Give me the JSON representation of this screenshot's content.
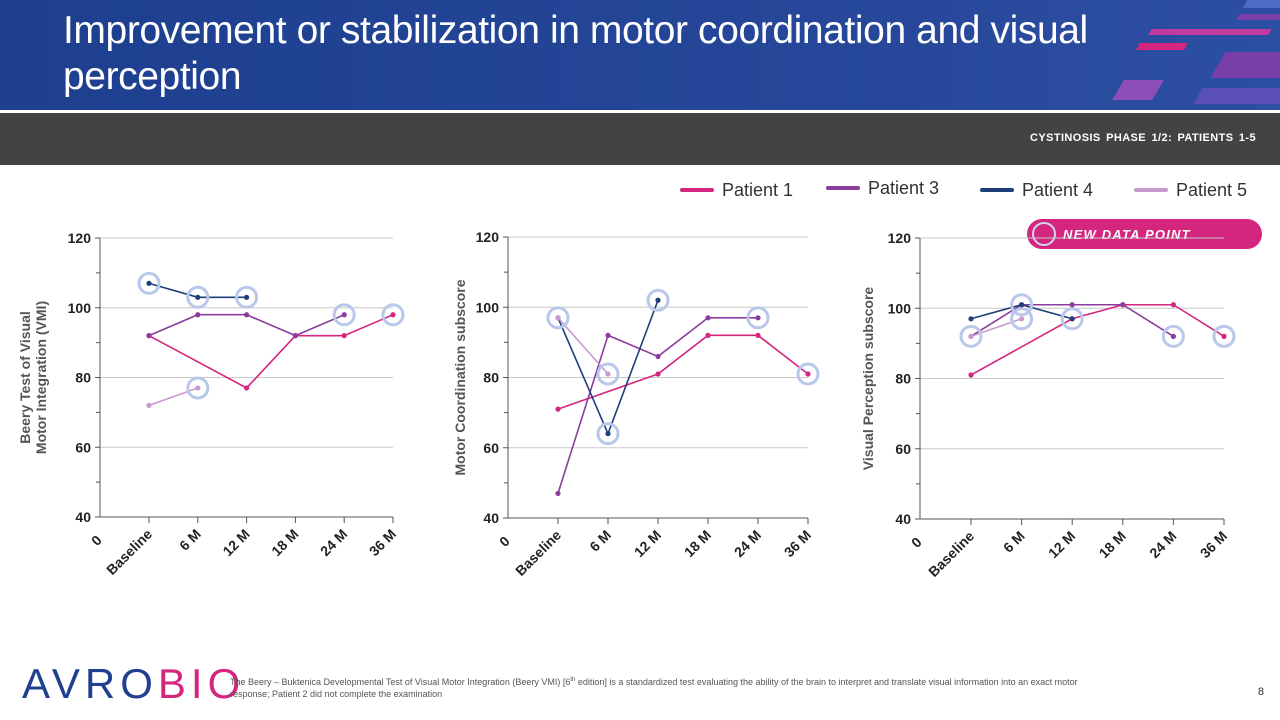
{
  "title": "Improvement or stabilization in motor coordination and visual perception",
  "subtitle": "CYSTINOSIS PHASE 1/2: PATIENTS 1-5",
  "legend": [
    {
      "label": "Patient 1",
      "color": "#d4267f"
    },
    {
      "label": "Patient 3",
      "color": "#8b3c9c"
    },
    {
      "label": "Patient 4",
      "color": "#1f3f7a"
    },
    {
      "label": "Patient 5",
      "color": "#c89ad0"
    }
  ],
  "badge": {
    "label": "NEW DATA POINT"
  },
  "chart_data": [
    {
      "type": "line",
      "ylabel": "Beery Test of Visual Motor Integration (VMI)",
      "ylabel_lines": [
        "Beery Test of Visual",
        "Motor Integration (VMI)"
      ],
      "categories": [
        "Baseline",
        "6 M",
        "12 M",
        "18 M",
        "24 M",
        "36 M"
      ],
      "ylim": [
        40,
        120
      ],
      "yticks": [
        40,
        60,
        80,
        100,
        120
      ],
      "origin_label": "0",
      "series": [
        {
          "name": "Patient 1",
          "values": [
            92,
            null,
            77,
            92,
            92,
            98
          ]
        },
        {
          "name": "Patient 3",
          "values": [
            92,
            98,
            98,
            92,
            98,
            null
          ]
        },
        {
          "name": "Patient 4",
          "values": [
            107,
            103,
            103,
            null,
            null,
            null
          ]
        },
        {
          "name": "Patient 5",
          "values": [
            72,
            77,
            null,
            null,
            null,
            null
          ]
        }
      ],
      "new_points": [
        [
          2,
          0
        ],
        [
          2,
          1
        ],
        [
          2,
          2
        ],
        [
          3,
          1
        ],
        [
          1,
          4
        ],
        [
          0,
          5
        ]
      ]
    },
    {
      "type": "line",
      "ylabel": "Motor Coordination subscore",
      "ylabel_lines": [
        "Motor Coordination subscore"
      ],
      "categories": [
        "Baseline",
        "6 M",
        "12 M",
        "18 M",
        "24 M",
        "36 M"
      ],
      "ylim": [
        40,
        120
      ],
      "yticks": [
        40,
        60,
        80,
        100,
        120
      ],
      "origin_label": "0",
      "series": [
        {
          "name": "Patient 1",
          "values": [
            71,
            null,
            81,
            92,
            92,
            81
          ]
        },
        {
          "name": "Patient 3",
          "values": [
            47,
            92,
            86,
            97,
            97,
            null
          ]
        },
        {
          "name": "Patient 4",
          "values": [
            97,
            64,
            102,
            null,
            null,
            null
          ]
        },
        {
          "name": "Patient 5",
          "values": [
            97,
            81,
            null,
            null,
            null,
            null
          ]
        }
      ],
      "new_points": [
        [
          2,
          0
        ],
        [
          2,
          1
        ],
        [
          3,
          1
        ],
        [
          2,
          2
        ],
        [
          1,
          4
        ],
        [
          0,
          5
        ]
      ]
    },
    {
      "type": "line",
      "ylabel": "Visual Perception subscore",
      "ylabel_lines": [
        "Visual Perception subscore"
      ],
      "categories": [
        "Baseline",
        "6 M",
        "12 M",
        "18 M",
        "24 M",
        "36 M"
      ],
      "ylim": [
        40,
        120
      ],
      "yticks": [
        40,
        60,
        80,
        100,
        120
      ],
      "origin_label": "0",
      "series": [
        {
          "name": "Patient 1",
          "values": [
            81,
            null,
            97,
            101,
            101,
            92
          ]
        },
        {
          "name": "Patient 3",
          "values": [
            92,
            101,
            101,
            101,
            92,
            null
          ]
        },
        {
          "name": "Patient 4",
          "values": [
            97,
            101,
            97,
            null,
            null,
            null
          ]
        },
        {
          "name": "Patient 5",
          "values": [
            92,
            97,
            null,
            null,
            null,
            null
          ]
        }
      ],
      "new_points": [
        [
          3,
          0
        ],
        [
          2,
          1
        ],
        [
          3,
          1
        ],
        [
          2,
          2
        ],
        [
          1,
          4
        ],
        [
          0,
          5
        ]
      ]
    }
  ],
  "footer": {
    "logo_main": "AVRO",
    "logo_accent": "BIO",
    "footnote_before": "The Beery – Buktenica Developmental Test of Visual Motor Integration (Beery VMI) [6",
    "footnote_sup": "th",
    "footnote_after": " edition] is a standardized test evaluating the ability of the brain to interpret and translate visual information into an exact motor response; Patient 2 did not complete the examination",
    "page_number": "8"
  }
}
